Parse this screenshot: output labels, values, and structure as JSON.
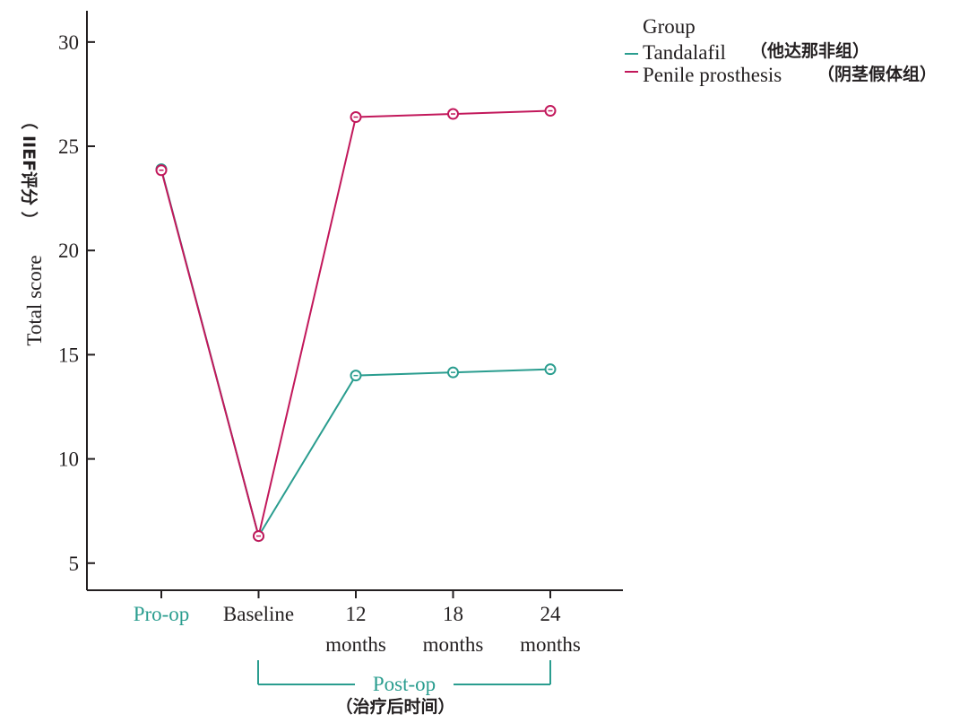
{
  "colors": {
    "tandalafil": "#2a9d8f",
    "penile_prosthesis": "#c2185b",
    "axis": "#231f20",
    "post_op_bracket": "#2a9d8f"
  },
  "y_axis": {
    "label": "Total score",
    "label_cn": "（ IIEF评分 ）"
  },
  "x_annotation": {
    "post_op": "Post-op",
    "post_op_cn": "（治疗后时间）"
  },
  "legend": {
    "title": "Group",
    "items": [
      {
        "label": "Tandalafil",
        "label_cn": "（他达那非组）"
      },
      {
        "label": "Penile prosthesis",
        "label_cn": "（阴茎假体组）"
      }
    ]
  },
  "chart_data": {
    "type": "line",
    "categories": [
      {
        "line1": "Pro-op",
        "line2": "",
        "highlight": true
      },
      {
        "line1": "Baseline",
        "line2": "",
        "highlight": false
      },
      {
        "line1": "12",
        "line2": "months",
        "highlight": false
      },
      {
        "line1": "18",
        "line2": "months",
        "highlight": false
      },
      {
        "line1": "24",
        "line2": "months",
        "highlight": false
      }
    ],
    "series": [
      {
        "name": "Tandalafil",
        "color": "#2a9d8f",
        "values": [
          23.9,
          6.3,
          14.0,
          14.15,
          14.3
        ]
      },
      {
        "name": "Penile prosthesis",
        "color": "#c2185b",
        "values": [
          23.85,
          6.3,
          26.4,
          26.55,
          26.7
        ]
      }
    ],
    "ylim": [
      3.7,
      31.5
    ],
    "yticks": [
      5,
      10,
      15,
      20,
      25,
      30
    ],
    "grid": false,
    "legend_position": "top-right"
  }
}
